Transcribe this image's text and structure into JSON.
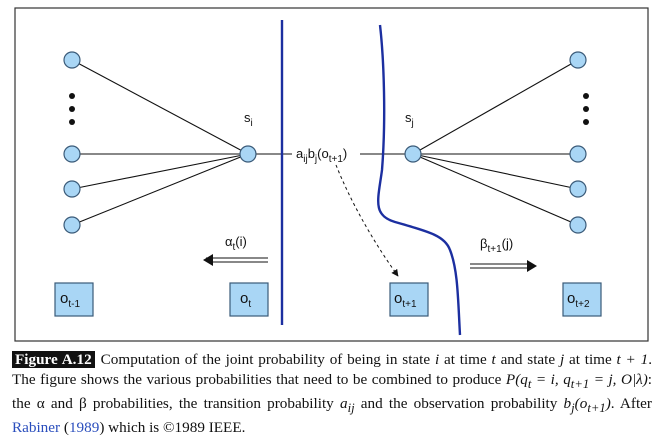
{
  "diagram": {
    "left_label": "s",
    "left_label_sub": "i",
    "right_label": "s",
    "right_label_sub": "j",
    "transition_label": "a",
    "transition_label_sub_ij": "ij",
    "transition_label_b": "b",
    "transition_label_sub_j": "j",
    "transition_label_arg": "(o",
    "transition_label_arg_sub": "t+1",
    "transition_label_close": ")",
    "alpha_label": "α",
    "alpha_sub": "t",
    "alpha_arg": "(i)",
    "beta_label": "β",
    "beta_sub": "t+1",
    "beta_arg": "(j)",
    "boxes": [
      {
        "main": "o",
        "sub": "t-1"
      },
      {
        "main": "o",
        "sub": "t"
      },
      {
        "main": "o",
        "sub": "t+1"
      },
      {
        "main": "o",
        "sub": "t+2"
      }
    ]
  },
  "caption": {
    "figure_label": "Figure A.12",
    "text_1": "Computation of the joint probability of being in state ",
    "i": "i",
    "text_2": " at time ",
    "t": "t",
    "text_3": " and state ",
    "j": "j",
    "text_4": " at time ",
    "t1": "t + 1",
    "text_5": ". The figure shows the various probabilities that need to be combined to produce ",
    "formula": "P(q",
    "formula_sub1": "t",
    "formula_2": " = i, q",
    "formula_sub2": "t+1",
    "formula_3": " = j, O|λ)",
    "text_6": ": the α and β probabilities, the transition probability ",
    "aij": "a",
    "aij_sub": "ij",
    "text_7": " and the observation probability ",
    "bj": "b",
    "bj_sub": "j",
    "bj_arg": "(o",
    "bj_arg_sub": "t+1",
    "bj_close": ")",
    "text_8": ". After ",
    "cite_author": "Rabiner",
    "text_9": " (",
    "cite_year": "1989",
    "text_10": ") which is ©1989 IEEE."
  }
}
